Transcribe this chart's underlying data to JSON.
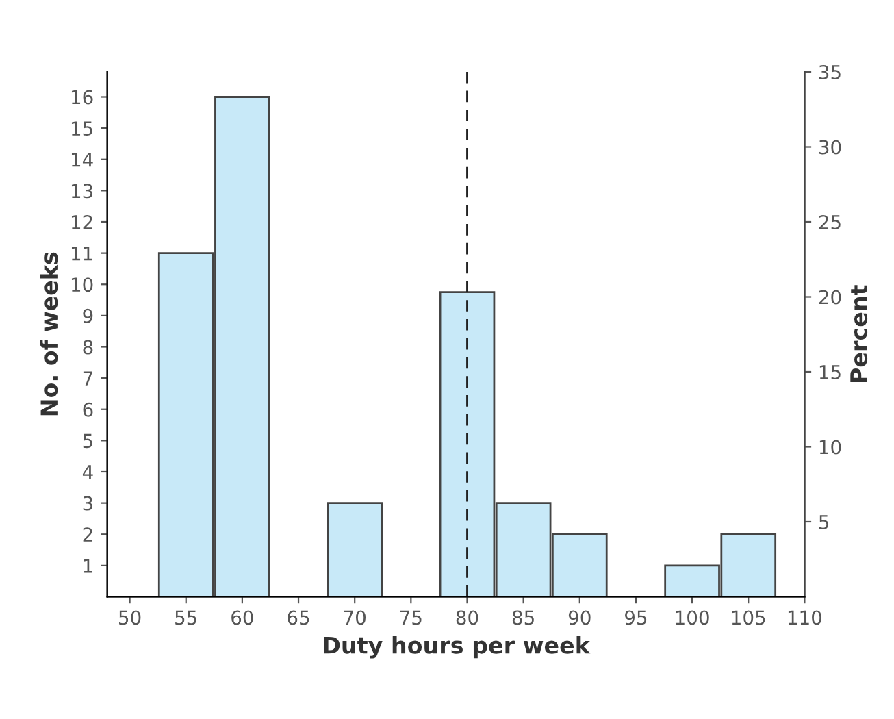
{
  "chart_data": {
    "type": "histogram",
    "xlabel": "Duty hours per week",
    "ylabel": "No. of weeks",
    "y2label": "Percent",
    "bins": [
      52.5,
      57.5,
      62.5,
      67.5,
      72.5,
      77.5,
      82.5,
      87.5,
      92.5,
      97.5,
      102.5,
      107.5
    ],
    "values": [
      11,
      16,
      0,
      3,
      0,
      9.75,
      3,
      2,
      0,
      1,
      2
    ],
    "color": "#c8e9f8",
    "xlim": [
      48,
      110
    ],
    "xticks": [
      50,
      55,
      60,
      65,
      70,
      75,
      80,
      85,
      90,
      95,
      100,
      105,
      110
    ],
    "ylim": [
      0,
      16.8
    ],
    "yticks": [
      1,
      2,
      3,
      4,
      5,
      6,
      7,
      8,
      9,
      10,
      11,
      12,
      13,
      14,
      15,
      16
    ],
    "y2lim": [
      0,
      35
    ],
    "y2ticks": [
      5,
      10,
      15,
      20,
      25,
      30,
      35
    ],
    "ref_lines": [
      {
        "axis": "x",
        "value": 80,
        "label": null,
        "line_style": "dashed",
        "color": "#222222"
      }
    ],
    "grid": false,
    "legend": false
  }
}
